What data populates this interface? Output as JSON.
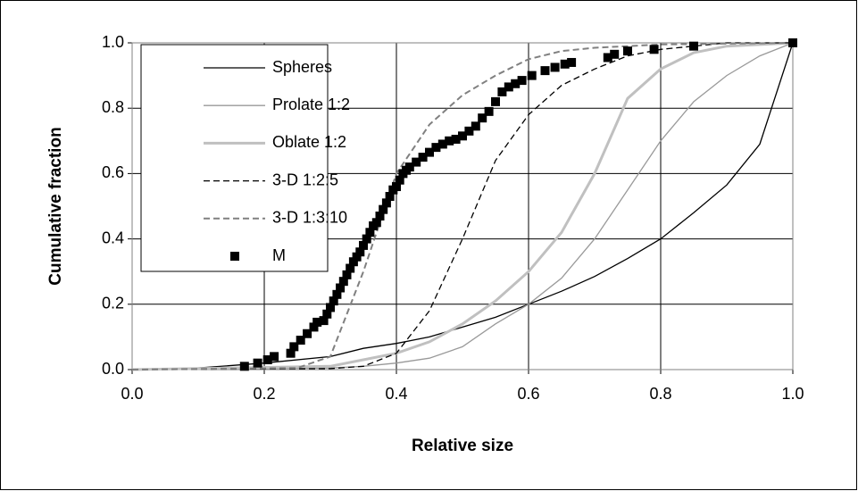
{
  "chart_data": {
    "type": "line",
    "x_label": "Relative size",
    "y_label": "Cumulative fraction",
    "xlim": [
      0,
      1
    ],
    "ylim": [
      0,
      1
    ],
    "xticks": [
      {
        "value": 0,
        "label": "0.0"
      },
      0.2,
      0.4,
      0.6,
      0.8,
      {
        "value": 1,
        "label": "1.0"
      }
    ],
    "yticks": [
      {
        "value": 0,
        "label": "0.0"
      },
      0.2,
      0.4,
      0.6,
      0.8,
      {
        "value": 1,
        "label": "1.0"
      }
    ],
    "grid": true,
    "legend": "upper left",
    "series": [
      {
        "name": "Spheres",
        "color": "#000000",
        "style": "solid",
        "width": 1.3,
        "x": [
          0,
          0.1,
          0.2,
          0.3,
          0.35,
          0.4,
          0.45,
          0.5,
          0.55,
          0.6,
          0.65,
          0.7,
          0.75,
          0.8,
          0.85,
          0.9,
          0.95,
          1
        ],
        "values": [
          0,
          0.005,
          0.02,
          0.04,
          0.065,
          0.08,
          0.1,
          0.13,
          0.16,
          0.2,
          0.24,
          0.285,
          0.34,
          0.4,
          0.48,
          0.565,
          0.69,
          1
        ]
      },
      {
        "name": "Prolate 1:2",
        "color": "#999999",
        "style": "solid",
        "width": 1.3,
        "x": [
          0,
          0.3,
          0.35,
          0.4,
          0.45,
          0.5,
          0.55,
          0.6,
          0.65,
          0.7,
          0.75,
          0.8,
          0.85,
          0.9,
          0.95,
          1
        ],
        "values": [
          0,
          0.005,
          0.01,
          0.02,
          0.035,
          0.07,
          0.14,
          0.2,
          0.28,
          0.4,
          0.55,
          0.7,
          0.82,
          0.9,
          0.96,
          1
        ]
      },
      {
        "name": "Oblate 1:2",
        "color": "#c0c0c0",
        "style": "solid",
        "width": 3,
        "x": [
          0,
          0.3,
          0.35,
          0.4,
          0.45,
          0.5,
          0.55,
          0.6,
          0.65,
          0.7,
          0.75,
          0.8,
          0.85,
          0.9,
          1
        ],
        "values": [
          0,
          0.01,
          0.03,
          0.05,
          0.085,
          0.14,
          0.21,
          0.3,
          0.42,
          0.6,
          0.83,
          0.92,
          0.97,
          0.99,
          1
        ]
      },
      {
        "name": "3-D 1:2:5",
        "color": "#000000",
        "style": "dashed",
        "width": 1.3,
        "x": [
          0,
          0.3,
          0.35,
          0.4,
          0.45,
          0.5,
          0.55,
          0.6,
          0.65,
          0.7,
          0.75,
          0.8,
          0.85,
          0.9,
          1
        ],
        "values": [
          0,
          0.003,
          0.01,
          0.05,
          0.18,
          0.4,
          0.64,
          0.78,
          0.87,
          0.92,
          0.96,
          0.98,
          0.99,
          1,
          1
        ]
      },
      {
        "name": "3-D 1:3:10",
        "color": "#808080",
        "style": "dashed",
        "width": 2,
        "x": [
          0,
          0.25,
          0.3,
          0.35,
          0.4,
          0.45,
          0.5,
          0.55,
          0.6,
          0.65,
          0.7,
          0.75,
          0.8,
          1
        ],
        "values": [
          0,
          0.005,
          0.04,
          0.3,
          0.6,
          0.75,
          0.84,
          0.9,
          0.95,
          0.975,
          0.985,
          0.99,
          0.995,
          1
        ]
      },
      {
        "name": "M",
        "color": "#000000",
        "style": "marker",
        "x": [
          0.17,
          0.19,
          0.205,
          0.215,
          0.24,
          0.245,
          0.255,
          0.265,
          0.275,
          0.28,
          0.29,
          0.295,
          0.3,
          0.305,
          0.31,
          0.315,
          0.32,
          0.325,
          0.33,
          0.335,
          0.34,
          0.345,
          0.35,
          0.355,
          0.36,
          0.365,
          0.37,
          0.375,
          0.38,
          0.385,
          0.39,
          0.395,
          0.4,
          0.405,
          0.41,
          0.415,
          0.42,
          0.43,
          0.44,
          0.45,
          0.46,
          0.47,
          0.48,
          0.49,
          0.5,
          0.51,
          0.52,
          0.53,
          0.54,
          0.55,
          0.56,
          0.57,
          0.58,
          0.59,
          0.605,
          0.625,
          0.64,
          0.655,
          0.665,
          0.72,
          0.73,
          0.75,
          0.79,
          0.85,
          1
        ],
        "values": [
          0.01,
          0.02,
          0.03,
          0.04,
          0.05,
          0.07,
          0.09,
          0.11,
          0.13,
          0.145,
          0.15,
          0.17,
          0.19,
          0.21,
          0.23,
          0.25,
          0.27,
          0.29,
          0.31,
          0.33,
          0.345,
          0.36,
          0.38,
          0.4,
          0.42,
          0.44,
          0.45,
          0.47,
          0.49,
          0.51,
          0.53,
          0.55,
          0.56,
          0.58,
          0.6,
          0.61,
          0.62,
          0.635,
          0.65,
          0.665,
          0.68,
          0.69,
          0.7,
          0.705,
          0.715,
          0.73,
          0.745,
          0.77,
          0.79,
          0.82,
          0.85,
          0.865,
          0.875,
          0.885,
          0.9,
          0.915,
          0.925,
          0.935,
          0.94,
          0.955,
          0.965,
          0.975,
          0.98,
          0.99,
          1
        ]
      }
    ]
  }
}
